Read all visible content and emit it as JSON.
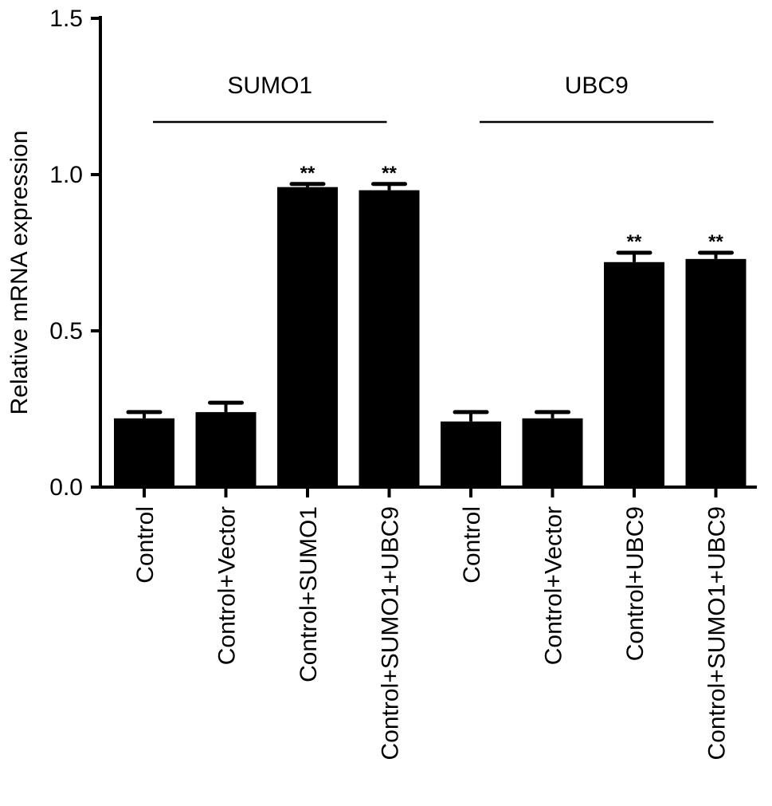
{
  "chart_data": {
    "type": "bar",
    "title": "",
    "xlabel": "",
    "ylabel": "Relative mRNA expression",
    "ylim": [
      0,
      1.5
    ],
    "yticks": [
      "0.0",
      "0.5",
      "1.0",
      "1.5"
    ],
    "grid": false,
    "categories": [
      "Control",
      "Control+Vector",
      "Control+SUMO1",
      "Control+SUMO1+UBC9",
      "Control",
      "Control+Vector",
      "Control+UBC9",
      "Control+SUMO1+UBC9"
    ],
    "series": [
      {
        "values": [
          0.22,
          0.24,
          0.96,
          0.95,
          0.21,
          0.22,
          0.72,
          0.73
        ],
        "errors": [
          0.02,
          0.03,
          0.01,
          0.02,
          0.03,
          0.02,
          0.03,
          0.02
        ],
        "color": "#000000"
      }
    ],
    "annotations": [
      "",
      "",
      "**",
      "**",
      "",
      "",
      "**",
      "**"
    ],
    "groups": [
      {
        "label": "SUMO1",
        "start": 0,
        "end": 3
      },
      {
        "label": "UBC9",
        "start": 4,
        "end": 7
      }
    ]
  }
}
